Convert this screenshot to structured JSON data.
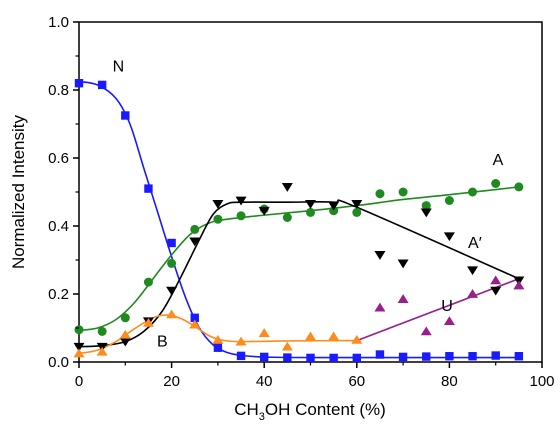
{
  "chart_data": {
    "type": "scatter",
    "xlabel_main": "CH",
    "xlabel_sub": "3",
    "xlabel_rest": "OH Content (%)",
    "ylabel": "Normalized Intensity",
    "xlim": [
      0,
      100
    ],
    "ylim": [
      0,
      1.0
    ],
    "x_ticks": [
      0,
      20,
      40,
      60,
      80,
      100
    ],
    "x_tick_labels": [
      "0",
      "20",
      "40",
      "60",
      "80",
      "100"
    ],
    "y_ticks": [
      0.0,
      0.2,
      0.4,
      0.6,
      0.8,
      1.0
    ],
    "y_tick_labels": [
      "0.0",
      "0.2",
      "0.4",
      "0.6",
      "0.8",
      "1.0"
    ],
    "grid": false,
    "series": [
      {
        "name": "N",
        "color": "#1a1aff",
        "marker": "square",
        "points": [
          [
            0,
            0.82
          ],
          [
            5,
            0.815
          ],
          [
            10,
            0.725
          ],
          [
            15,
            0.51
          ],
          [
            20,
            0.35
          ],
          [
            25,
            0.13
          ],
          [
            30,
            0.042
          ],
          [
            35,
            0.018
          ],
          [
            40,
            0.015
          ],
          [
            45,
            0.013
          ],
          [
            50,
            0.012
          ],
          [
            55,
            0.012
          ],
          [
            60,
            0.012
          ],
          [
            65,
            0.022
          ],
          [
            70,
            0.015
          ],
          [
            75,
            0.016
          ],
          [
            80,
            0.017
          ],
          [
            85,
            0.017
          ],
          [
            90,
            0.019
          ],
          [
            95,
            0.017
          ]
        ],
        "curve": [
          [
            0,
            0.825
          ],
          [
            4,
            0.815
          ],
          [
            8,
            0.775
          ],
          [
            11,
            0.7
          ],
          [
            14,
            0.57
          ],
          [
            17,
            0.44
          ],
          [
            20,
            0.31
          ],
          [
            23,
            0.19
          ],
          [
            26,
            0.1
          ],
          [
            29,
            0.05
          ],
          [
            32,
            0.028
          ],
          [
            36,
            0.018
          ],
          [
            42,
            0.014
          ],
          [
            55,
            0.013
          ],
          [
            70,
            0.013
          ],
          [
            95,
            0.013
          ]
        ]
      },
      {
        "name": "A",
        "color": "#1f8a1f",
        "marker": "circle",
        "points": [
          [
            0,
            0.095
          ],
          [
            5,
            0.09
          ],
          [
            10,
            0.13
          ],
          [
            15,
            0.235
          ],
          [
            20,
            0.29
          ],
          [
            25,
            0.39
          ],
          [
            30,
            0.42
          ],
          [
            35,
            0.43
          ],
          [
            40,
            0.45
          ],
          [
            45,
            0.425
          ],
          [
            50,
            0.44
          ],
          [
            55,
            0.445
          ],
          [
            60,
            0.44
          ],
          [
            65,
            0.495
          ],
          [
            70,
            0.5
          ],
          [
            75,
            0.46
          ],
          [
            80,
            0.475
          ],
          [
            85,
            0.5
          ],
          [
            90,
            0.525
          ],
          [
            95,
            0.515
          ]
        ],
        "curve": [
          [
            0,
            0.093
          ],
          [
            4,
            0.1
          ],
          [
            8,
            0.125
          ],
          [
            12,
            0.175
          ],
          [
            16,
            0.245
          ],
          [
            20,
            0.315
          ],
          [
            24,
            0.375
          ],
          [
            28,
            0.408
          ],
          [
            32,
            0.42
          ],
          [
            40,
            0.432
          ],
          [
            50,
            0.445
          ],
          [
            60,
            0.46
          ],
          [
            70,
            0.478
          ],
          [
            80,
            0.492
          ],
          [
            95,
            0.515
          ]
        ]
      },
      {
        "name": "A′",
        "color": "#000000",
        "marker": "triangle-down",
        "points": [
          [
            0,
            0.045
          ],
          [
            5,
            0.045
          ],
          [
            10,
            0.06
          ],
          [
            15,
            0.12
          ],
          [
            20,
            0.21
          ],
          [
            25,
            0.355
          ],
          [
            30,
            0.465
          ],
          [
            35,
            0.475
          ],
          [
            40,
            0.445
          ],
          [
            45,
            0.515
          ],
          [
            50,
            0.465
          ],
          [
            55,
            0.46
          ],
          [
            60,
            0.465
          ],
          [
            65,
            0.315
          ],
          [
            70,
            0.29
          ],
          [
            75,
            0.44
          ],
          [
            80,
            0.37
          ],
          [
            85,
            0.27
          ],
          [
            90,
            0.21
          ],
          [
            95,
            0.24
          ]
        ],
        "curve": [
          [
            0,
            0.045
          ],
          [
            5,
            0.048
          ],
          [
            10,
            0.06
          ],
          [
            14,
            0.09
          ],
          [
            18,
            0.15
          ],
          [
            22,
            0.25
          ],
          [
            26,
            0.36
          ],
          [
            29,
            0.435
          ],
          [
            32,
            0.465
          ],
          [
            35,
            0.47
          ],
          [
            45,
            0.47
          ],
          [
            55,
            0.47
          ],
          [
            60,
            0.455
          ],
          [
            95,
            0.245
          ]
        ]
      },
      {
        "name": "B",
        "color": "#ff8c1a",
        "marker": "triangle-up",
        "points": [
          [
            0,
            0.025
          ],
          [
            5,
            0.03
          ],
          [
            10,
            0.08
          ],
          [
            15,
            0.115
          ],
          [
            20,
            0.14
          ],
          [
            25,
            0.11
          ],
          [
            30,
            0.065
          ],
          [
            35,
            0.06
          ],
          [
            40,
            0.085
          ],
          [
            45,
            0.045
          ],
          [
            50,
            0.075
          ],
          [
            55,
            0.075
          ],
          [
            60,
            0.065
          ]
        ],
        "curve": [
          [
            0,
            0.025
          ],
          [
            4,
            0.035
          ],
          [
            8,
            0.06
          ],
          [
            12,
            0.098
          ],
          [
            16,
            0.13
          ],
          [
            19,
            0.138
          ],
          [
            22,
            0.128
          ],
          [
            25,
            0.105
          ],
          [
            28,
            0.078
          ],
          [
            31,
            0.064
          ],
          [
            35,
            0.06
          ],
          [
            45,
            0.062
          ],
          [
            60,
            0.063
          ]
        ]
      },
      {
        "name": "U",
        "color": "#991f8a",
        "marker": "triangle-up",
        "points": [
          [
            65,
            0.16
          ],
          [
            70,
            0.185
          ],
          [
            75,
            0.09
          ],
          [
            80,
            0.12
          ],
          [
            85,
            0.2
          ],
          [
            90,
            0.24
          ],
          [
            95,
            0.225
          ]
        ],
        "curve": [
          [
            60,
            0.063
          ],
          [
            95,
            0.245
          ]
        ]
      }
    ],
    "annotations": [
      {
        "text": "N",
        "x": 8.5,
        "y": 0.855
      },
      {
        "text": "A",
        "x": 90.5,
        "y": 0.58
      },
      {
        "text": "A′",
        "x": 85.5,
        "y": 0.335
      },
      {
        "text": "B",
        "x": 18,
        "y": 0.045
      },
      {
        "text": "U",
        "x": 79.5,
        "y": 0.15
      }
    ]
  }
}
